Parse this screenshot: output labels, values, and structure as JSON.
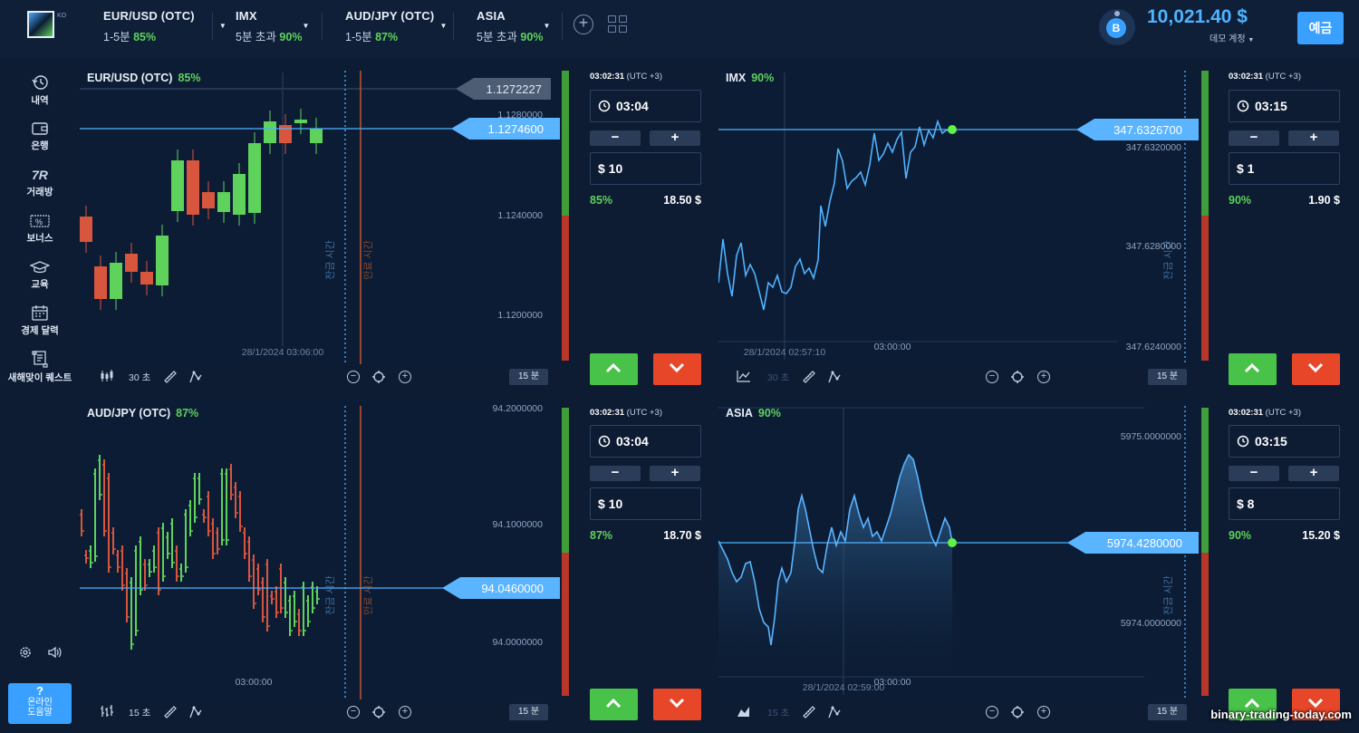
{
  "header": {
    "logo_tag": "KO",
    "assets": [
      {
        "name": "EUR/USD (OTC)",
        "duration": "1-5분",
        "payout": "85%"
      },
      {
        "name": "IMX",
        "duration": "5분 초과",
        "payout": "90%"
      },
      {
        "name": "AUD/JPY (OTC)",
        "duration": "1-5분",
        "payout": "87%"
      },
      {
        "name": "ASIA",
        "duration": "5분 초과",
        "payout": "90%"
      }
    ],
    "badge_letter": "B",
    "balance": "10,021.40 $",
    "account_type": "데모 계정",
    "deposit_label": "예금"
  },
  "sidebar": {
    "items": [
      {
        "label": "내역",
        "icon": "history-icon"
      },
      {
        "label": "은행",
        "icon": "wallet-icon"
      },
      {
        "label": "거래방",
        "icon": "trading-room-icon"
      },
      {
        "label": "보너스",
        "icon": "bonus-icon"
      },
      {
        "label": "교육",
        "icon": "education-icon"
      },
      {
        "label": "경제 달력",
        "icon": "calendar-icon"
      },
      {
        "label": "새해맞이 퀘스트",
        "icon": "quest-icon"
      }
    ],
    "help_label_1": "온라인",
    "help_label_2": "도움말",
    "help_q": "?"
  },
  "panels": [
    {
      "asset": "EUR/USD (OTC)",
      "payout": "85%",
      "current_price": "1.1274600",
      "marker_price": "1.1272227",
      "price_ticks": [
        "1.1280000",
        "1.1240000",
        "1.1200000"
      ],
      "date_label": "28/1/2024 03:06:00",
      "purchase_label": "잔금 시간",
      "expiry_label": "만료 시간",
      "chart_type_icon": "candles-icon",
      "interval": "30 초",
      "timeframe": "15 분",
      "server_time": "03:02:31",
      "tz": "(UTC +3)",
      "expiry": "03:04",
      "amount": "$ 10",
      "profit_pct": "85%",
      "payout_amount": "18.50 $"
    },
    {
      "asset": "IMX",
      "payout": "90%",
      "current_price": "347.6326700",
      "price_ticks": [
        "347.6320000",
        "347.6280000",
        "347.6240000"
      ],
      "date_label": "28/1/2024 02:57:10",
      "time_tick": "03:00:00",
      "purchase_label": "잔금 시간",
      "chart_type_icon": "line-chart-icon",
      "interval": "30 초",
      "timeframe": "15 분",
      "server_time": "03:02:31",
      "tz": "(UTC +3)",
      "expiry": "03:15",
      "amount": "$ 1",
      "profit_pct": "90%",
      "payout_amount": "1.90 $"
    },
    {
      "asset": "AUD/JPY (OTC)",
      "payout": "87%",
      "current_price": "94.0460000",
      "price_ticks": [
        "94.2000000",
        "94.1000000",
        "94.0000000"
      ],
      "time_tick": "03:00:00",
      "purchase_label": "잔금 시간",
      "expiry_label": "만료 시간",
      "chart_type_icon": "bars-icon",
      "interval": "15 초",
      "timeframe": "15 분",
      "server_time": "03:02:31",
      "tz": "(UTC +3)",
      "expiry": "03:04",
      "amount": "$ 10",
      "profit_pct": "87%",
      "payout_amount": "18.70 $"
    },
    {
      "asset": "ASIA",
      "payout": "90%",
      "current_price": "5974.4280000",
      "price_ticks": [
        "5975.0000000",
        "5974.0000000"
      ],
      "date_label": "28/1/2024 02:59:00",
      "time_tick": "03:00:00",
      "purchase_label": "잔금 시간",
      "chart_type_icon": "area-chart-icon",
      "interval": "15 초",
      "timeframe": "15 분",
      "server_time": "03:02:31",
      "tz": "(UTC +3)",
      "expiry": "03:15",
      "amount": "$ 8",
      "profit_pct": "90%",
      "payout_amount": "15.20 $"
    }
  ],
  "colors": {
    "background": "#0c1c34",
    "accent": "#3aa0ff",
    "up": "#49c24a",
    "down": "#e84629",
    "price_line": "#4fb3ff"
  },
  "watermark": "binary-trading-today.com"
}
